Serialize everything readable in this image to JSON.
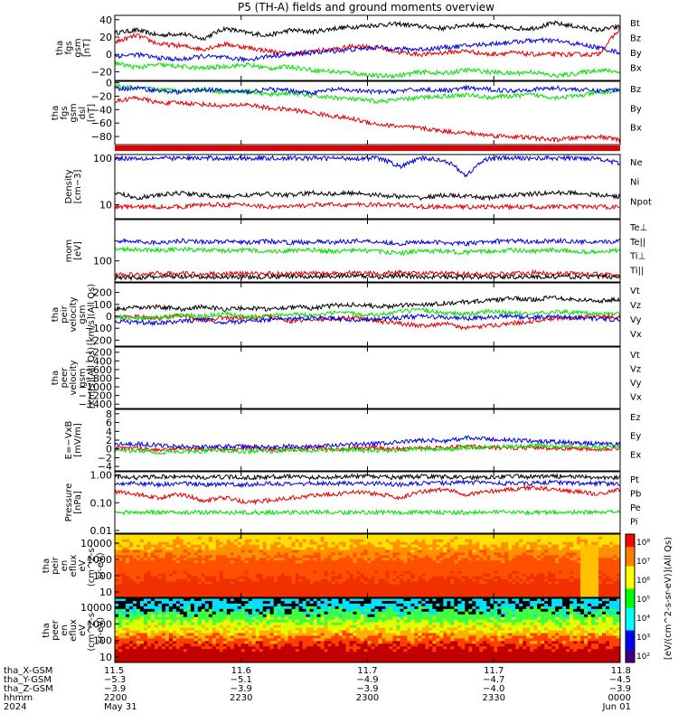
{
  "title": "P5 (TH-A) fields and ground moments overview",
  "colors": {
    "black": "#000000",
    "red": "#e00000",
    "green": "#00e000",
    "blue": "#0000e0",
    "spectrogram_low": "#e00000",
    "spectrogram_high": "#00ffff"
  },
  "chart_data": [
    {
      "id": "fgs-gsm",
      "type": "line",
      "ylabel": [
        "tha",
        "fgs",
        "gsm",
        "[nT]"
      ],
      "yticks": [
        "40",
        "20",
        "0",
        "−20"
      ],
      "ylim": [
        -30,
        45
      ],
      "series": [
        {
          "name": "Bt",
          "color": "black",
          "values": [
            25,
            28,
            22,
            24,
            18,
            30,
            25,
            22,
            28,
            26,
            30,
            32,
            34,
            35,
            32,
            30,
            34,
            33,
            30,
            30,
            36,
            32,
            28,
            32
          ]
        },
        {
          "name": "Bz",
          "color": "red",
          "values": [
            14,
            22,
            12,
            10,
            6,
            12,
            8,
            4,
            0,
            4,
            6,
            10,
            8,
            2,
            0,
            2,
            4,
            0,
            2,
            0,
            0,
            0,
            0,
            30
          ]
        },
        {
          "name": "By",
          "color": "green",
          "values": [
            -10,
            -15,
            -12,
            -14,
            -16,
            -14,
            -12,
            -16,
            -14,
            -18,
            -20,
            -22,
            -25,
            -24,
            -20,
            -22,
            -18,
            -20,
            -22,
            -20,
            -25,
            -22,
            -18,
            -20
          ]
        },
        {
          "name": "Bx",
          "color": "blue",
          "values": [
            -2,
            0,
            -4,
            -6,
            -2,
            -4,
            -6,
            -2,
            0,
            2,
            4,
            6,
            8,
            6,
            6,
            8,
            10,
            12,
            14,
            16,
            16,
            12,
            8,
            2
          ]
        }
      ],
      "legend": [
        "Bt",
        "Bz",
        "By",
        "Bx"
      ]
    },
    {
      "id": "fgs-gsm-dsl",
      "type": "line",
      "ylabel": [
        "tha",
        "fgs",
        "gsm",
        "dsl",
        "[nT]"
      ],
      "yticks": [
        "0",
        "−20",
        "−40",
        "−60",
        "−80"
      ],
      "ylim": [
        -92,
        2
      ],
      "series": [
        {
          "name": "Bz",
          "color": "red",
          "values": [
            -28,
            -22,
            -30,
            -30,
            -32,
            -35,
            -32,
            -38,
            -40,
            -45,
            -50,
            -55,
            -62,
            -65,
            -68,
            -72,
            -75,
            -78,
            -80,
            -82,
            -85,
            -82,
            -80,
            -85
          ]
        },
        {
          "name": "By",
          "color": "green",
          "values": [
            -5,
            -8,
            -10,
            -12,
            -10,
            -14,
            -12,
            -18,
            -15,
            -20,
            -22,
            -25,
            -28,
            -25,
            -22,
            -20,
            -18,
            -22,
            -20,
            -18,
            -22,
            -20,
            -15,
            -12
          ]
        },
        {
          "name": "Bx",
          "color": "blue",
          "values": [
            -10,
            -8,
            -12,
            -14,
            -10,
            -12,
            -14,
            -10,
            -12,
            -15,
            -10,
            -12,
            -14,
            -12,
            -10,
            -12,
            -8,
            -10,
            -12,
            -10,
            -8,
            -10,
            -12,
            -10
          ]
        }
      ],
      "legend": [
        "Bz",
        "By",
        "Bx"
      ]
    },
    {
      "id": "density",
      "type": "line",
      "log": true,
      "ylabel": [
        "Density",
        "[cm−3]"
      ],
      "yticks": [
        "100",
        "10"
      ],
      "ylim": [
        5,
        120
      ],
      "series": [
        {
          "name": "Ne",
          "color": "blue",
          "values": [
            100,
            100,
            100,
            100,
            100,
            100,
            100,
            100,
            100,
            100,
            100,
            100,
            100,
            65,
            100,
            90,
            40,
            100,
            100,
            100,
            100,
            100,
            100,
            75
          ]
        },
        {
          "name": "Ni",
          "color": "black",
          "values": [
            18,
            14,
            16,
            18,
            16,
            15,
            16,
            17,
            16,
            18,
            17,
            18,
            16,
            15,
            14,
            16,
            15,
            14,
            16,
            17,
            18,
            18,
            16,
            15
          ]
        },
        {
          "name": "Npot",
          "color": "red",
          "values": [
            9,
            9,
            9,
            9,
            10,
            10,
            10,
            9,
            9,
            10,
            10,
            10,
            10,
            10,
            9,
            9,
            9,
            9,
            9,
            9,
            9,
            9,
            9,
            9
          ]
        }
      ],
      "legend": [
        "Ne",
        "Ni",
        "Npot"
      ]
    },
    {
      "id": "temperature",
      "type": "line",
      "log": true,
      "ylabel": [
        "mom",
        "[eV]"
      ],
      "yticks": [
        "100"
      ],
      "ylim": [
        40,
        600
      ],
      "series": [
        {
          "name": "Te⊥",
          "color": "red",
          "values": [
            55,
            55,
            58,
            58,
            56,
            58,
            57,
            58,
            57,
            58,
            58,
            60,
            58,
            60,
            58,
            58,
            56,
            56,
            58,
            60,
            58,
            58,
            56,
            55
          ]
        },
        {
          "name": "Te||",
          "color": "black",
          "values": [
            48,
            48,
            50,
            50,
            49,
            50,
            50,
            50,
            51,
            50,
            52,
            52,
            50,
            52,
            50,
            50,
            49,
            50,
            50,
            50,
            50,
            50,
            50,
            50
          ]
        },
        {
          "name": "Ti⊥",
          "color": "blue",
          "values": [
            240,
            230,
            220,
            240,
            230,
            230,
            220,
            235,
            220,
            230,
            225,
            240,
            230,
            210,
            230,
            220,
            210,
            230,
            240,
            230,
            240,
            230,
            220,
            240
          ]
        },
        {
          "name": "Ti||",
          "color": "green",
          "values": [
            170,
            165,
            160,
            165,
            160,
            155,
            160,
            150,
            155,
            160,
            150,
            160,
            150,
            140,
            155,
            150,
            145,
            150,
            160,
            150,
            160,
            150,
            145,
            160
          ]
        }
      ],
      "legend": [
        "Te⊥",
        "Te||",
        "Ti⊥",
        "Ti||"
      ]
    },
    {
      "id": "peir-velocity",
      "type": "line",
      "ylabel": [
        "tha",
        "peir",
        "velocity",
        "gsm",
        "[km/s](All Qs)"
      ],
      "yticks": [
        "200",
        "100",
        "0",
        "−100",
        "−200"
      ],
      "ylim": [
        -250,
        280
      ],
      "series": [
        {
          "name": "Vt",
          "color": "black",
          "values": [
            60,
            70,
            80,
            60,
            80,
            60,
            70,
            60,
            80,
            70,
            90,
            100,
            80,
            90,
            100,
            110,
            120,
            130,
            150,
            140,
            160,
            140,
            130,
            140
          ]
        },
        {
          "name": "Vz",
          "color": "red",
          "values": [
            -10,
            0,
            -20,
            10,
            -30,
            -10,
            -20,
            0,
            -40,
            -30,
            -20,
            -10,
            -40,
            -60,
            -80,
            -60,
            -100,
            -80,
            -60,
            -40,
            -20,
            -10,
            0,
            -10
          ]
        },
        {
          "name": "Vy",
          "color": "green",
          "values": [
            0,
            -20,
            -10,
            10,
            0,
            20,
            -10,
            10,
            20,
            0,
            30,
            20,
            10,
            40,
            50,
            30,
            20,
            40,
            30,
            20,
            40,
            30,
            20,
            30
          ]
        },
        {
          "name": "Vx",
          "color": "blue",
          "values": [
            -40,
            -50,
            -60,
            -40,
            -30,
            -50,
            -40,
            -30,
            -20,
            -10,
            -20,
            -30,
            -20,
            -10,
            0,
            -10,
            -20,
            -10,
            0,
            -10,
            0,
            -10,
            -20,
            -30
          ]
        }
      ],
      "legend": [
        "Vt",
        "Vz",
        "Vy",
        "Vx"
      ]
    },
    {
      "id": "peer-velocity",
      "type": "line",
      "ylabel": [
        "tha",
        "peer",
        "velocity",
        "gsm",
        "[km/s](All Qs)"
      ],
      "yticks": [
        "−200",
        "−400",
        "−600",
        "−800",
        "−1000",
        "−1200",
        "−1400"
      ],
      "ylim": [
        -1500,
        -80
      ],
      "series": [],
      "legend": [
        "Vt",
        "Vz",
        "Vy",
        "Vx"
      ]
    },
    {
      "id": "e-field",
      "type": "line",
      "ylabel": [
        "E=−VxB",
        "[mV/m]"
      ],
      "yticks": [
        "8",
        "6",
        "4",
        "2",
        "0",
        "−2",
        "−4"
      ],
      "ylim": [
        -5,
        9
      ],
      "series": [
        {
          "name": "Ez",
          "color": "red",
          "values": [
            0,
            0.2,
            -0.2,
            0,
            0.1,
            -0.1,
            0.2,
            0,
            -0.2,
            0.1,
            0,
            0.3,
            0.2,
            0,
            0.4,
            0.2,
            0.6,
            0.3,
            0.2,
            0.3,
            0.2,
            0.1,
            0,
            0.2
          ]
        },
        {
          "name": "Ey",
          "color": "green",
          "values": [
            -0.5,
            -0.4,
            -0.8,
            -0.6,
            -0.5,
            -0.4,
            -0.6,
            -0.5,
            -0.3,
            -0.4,
            -0.2,
            -0.3,
            -0.4,
            -0.2,
            0,
            -0.1,
            0.2,
            0.4,
            0.6,
            0.8,
            0.6,
            0.5,
            0.4,
            0.5
          ]
        },
        {
          "name": "Ex",
          "color": "blue",
          "values": [
            1,
            1.2,
            0.8,
            0.6,
            0.4,
            0.6,
            0.5,
            0.4,
            0.6,
            0.5,
            0.8,
            1,
            1.2,
            1.5,
            2,
            1.8,
            2.5,
            2.2,
            2,
            1.8,
            1.6,
            1.4,
            1.2,
            1
          ]
        }
      ],
      "legend": [
        "Ez",
        "Ey",
        "Ex"
      ]
    },
    {
      "id": "pressure",
      "type": "line",
      "log": true,
      "ylabel": [
        "Pressure",
        "[nPa]"
      ],
      "yticks": [
        "1.00",
        "0.10",
        "0.01"
      ],
      "ylim": [
        0.008,
        1.3
      ],
      "series": [
        {
          "name": "Pt",
          "color": "black",
          "values": [
            0.9,
            0.8,
            0.85,
            0.9,
            0.8,
            0.85,
            0.8,
            0.85,
            0.9,
            0.8,
            0.85,
            0.9,
            0.85,
            0.8,
            0.9,
            0.85,
            0.8,
            0.85,
            0.9,
            0.85,
            0.9,
            0.85,
            0.8,
            0.8
          ]
        },
        {
          "name": "Pb",
          "color": "red",
          "values": [
            0.25,
            0.2,
            0.15,
            0.2,
            0.12,
            0.15,
            0.1,
            0.12,
            0.15,
            0.18,
            0.2,
            0.25,
            0.2,
            0.15,
            0.25,
            0.3,
            0.2,
            0.25,
            0.3,
            0.35,
            0.3,
            0.25,
            0.2,
            0.3
          ]
        },
        {
          "name": "Pe",
          "color": "green",
          "values": [
            0.045,
            0.045,
            0.045,
            0.045,
            0.045,
            0.045,
            0.045,
            0.045,
            0.045,
            0.045,
            0.045,
            0.045,
            0.045,
            0.045,
            0.045,
            0.045,
            0.045,
            0.045,
            0.045,
            0.045,
            0.045,
            0.045,
            0.045,
            0.045
          ]
        },
        {
          "name": "Pi",
          "color": "blue",
          "values": [
            0.5,
            0.5,
            0.45,
            0.5,
            0.45,
            0.45,
            0.45,
            0.5,
            0.45,
            0.5,
            0.5,
            0.5,
            0.5,
            0.45,
            0.5,
            0.5,
            0.55,
            0.5,
            0.5,
            0.5,
            0.55,
            0.5,
            0.5,
            0.45
          ]
        }
      ],
      "legend": [
        "Pt",
        "Pb",
        "Pe",
        "Pi"
      ]
    },
    {
      "id": "peir-spectrogram",
      "type": "heatmap",
      "ylabel": [
        "tha",
        "peir",
        "en",
        "eflux",
        "eV",
        "(cm^2-s-",
        "sr-eV)"
      ],
      "yticks": [
        "10000",
        "1000",
        "100",
        "10"
      ]
    },
    {
      "id": "peer-spectrogram",
      "type": "heatmap",
      "ylabel": [
        "tha",
        "peer",
        "en",
        "eflux",
        "eV",
        "(cm^2-s-",
        "sr-eV)"
      ],
      "yticks": [
        "10000",
        "1000",
        "100",
        "10"
      ]
    }
  ],
  "colorbar": {
    "ticks": [
      "10⁸",
      "10⁷",
      "10⁶",
      "10⁵",
      "10⁴",
      "10³",
      "10²"
    ],
    "label": "[eV/(cm^2-s-sr-eV)](All Qs)"
  },
  "xaxis": {
    "rows": [
      {
        "label": "tha_X-GSM",
        "values": [
          "11.5",
          "11.6",
          "11.7",
          "11.7",
          "11.8"
        ]
      },
      {
        "label": "tha_Y-GSM",
        "values": [
          "−5.3",
          "−5.1",
          "−4.9",
          "−4.7",
          "−4.5"
        ]
      },
      {
        "label": "tha_Z-GSM",
        "values": [
          "−3.9",
          "−3.9",
          "−3.9",
          "−4.0",
          "−3.9"
        ]
      },
      {
        "label": "hhmm",
        "values": [
          "2200",
          "2230",
          "2300",
          "2330",
          "0000"
        ]
      },
      {
        "label": "2024",
        "values": [
          "May 31",
          "",
          "",
          "",
          "Jun 01"
        ]
      }
    ]
  }
}
